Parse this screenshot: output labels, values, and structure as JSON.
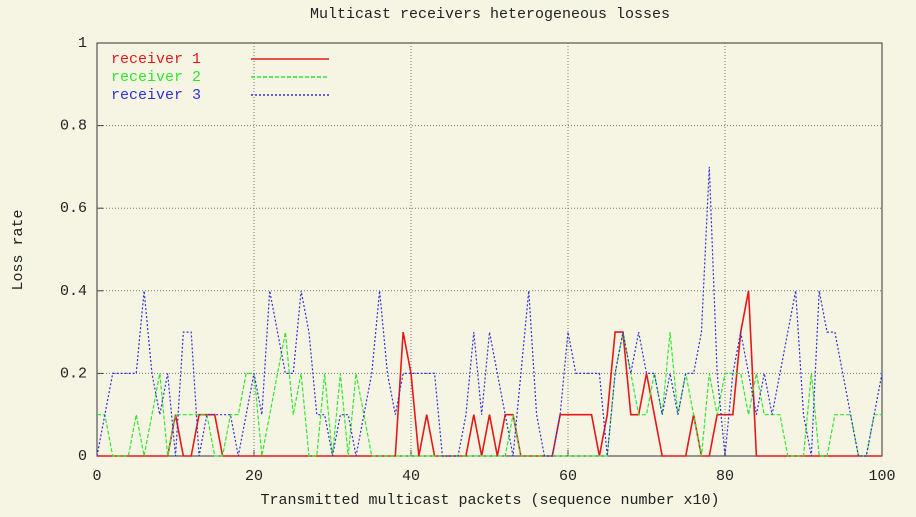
{
  "chart_data": {
    "type": "line",
    "title": "Multicast receivers heterogeneous losses",
    "xlabel": "Transmitted multicast packets (sequence number x10)",
    "ylabel": "Loss rate",
    "xlim": [
      0,
      100
    ],
    "ylim": [
      0,
      1
    ],
    "xticks": [
      0,
      20,
      40,
      60,
      80,
      100
    ],
    "yticks": [
      0,
      0.2,
      0.4,
      0.6,
      0.8,
      1
    ],
    "grid": true,
    "legend": "top-left",
    "x": [
      0,
      1,
      2,
      3,
      4,
      5,
      6,
      7,
      8,
      9,
      10,
      11,
      12,
      13,
      14,
      15,
      16,
      17,
      18,
      19,
      20,
      21,
      22,
      23,
      24,
      25,
      26,
      27,
      28,
      29,
      30,
      31,
      32,
      33,
      34,
      35,
      36,
      37,
      38,
      39,
      40,
      41,
      42,
      43,
      44,
      45,
      46,
      47,
      48,
      49,
      50,
      51,
      52,
      53,
      54,
      55,
      56,
      57,
      58,
      59,
      60,
      61,
      62,
      63,
      64,
      65,
      66,
      67,
      68,
      69,
      70,
      71,
      72,
      73,
      74,
      75,
      76,
      77,
      78,
      79,
      80,
      81,
      82,
      83,
      84,
      85,
      86,
      87,
      88,
      89,
      90,
      91,
      92,
      93,
      94,
      95,
      96,
      97,
      98,
      99,
      100
    ],
    "series": [
      {
        "name": "receiver 1",
        "color": "#e81818",
        "dash": "solid",
        "values": [
          0,
          0,
          0,
          0,
          0,
          0,
          0,
          0,
          0,
          0,
          0.1,
          0,
          0,
          0.1,
          0.1,
          0.1,
          0,
          0,
          0,
          0,
          0,
          0,
          0,
          0,
          0,
          0,
          0,
          0,
          0,
          0,
          0,
          0,
          0,
          0,
          0,
          0,
          0,
          0,
          0,
          0.3,
          0.2,
          0,
          0.1,
          0,
          0,
          0,
          0,
          0,
          0.1,
          0,
          0.1,
          0,
          0.1,
          0.1,
          0,
          0,
          0,
          0,
          0,
          0.1,
          0.1,
          0.1,
          0.1,
          0.1,
          0,
          0.1,
          0.3,
          0.3,
          0.1,
          0.1,
          0.2,
          0.1,
          0,
          0,
          0,
          0,
          0.1,
          0,
          0,
          0.1,
          0.1,
          0.1,
          0.3,
          0.4,
          0,
          0,
          0,
          0,
          0,
          0,
          0,
          0,
          0,
          0,
          0,
          0,
          0,
          0,
          0,
          0,
          0
        ]
      },
      {
        "name": "receiver 2",
        "color": "#2ee82e",
        "dash": "dashed",
        "values": [
          0.1,
          0.1,
          0,
          0,
          0,
          0.1,
          0,
          0.1,
          0.2,
          0,
          0.1,
          0.1,
          0.1,
          0.1,
          0.1,
          0,
          0,
          0.1,
          0.1,
          0.2,
          0.2,
          0,
          0.1,
          0.2,
          0.3,
          0.1,
          0.2,
          0,
          0,
          0.2,
          0,
          0.2,
          0,
          0.2,
          0.1,
          0,
          0,
          0,
          0,
          0,
          0,
          0,
          0,
          0,
          0,
          0,
          0,
          0,
          0,
          0,
          0,
          0,
          0,
          0.1,
          0,
          0,
          0,
          0,
          0,
          0,
          0,
          0,
          0,
          0,
          0,
          0,
          0.2,
          0.3,
          0.2,
          0.1,
          0.1,
          0.2,
          0.1,
          0.3,
          0.1,
          0.2,
          0.1,
          0,
          0.2,
          0.1,
          0.2,
          0.2,
          0.2,
          0.1,
          0.2,
          0.1,
          0.1,
          0.1,
          0,
          0,
          0,
          0.2,
          0,
          0,
          0.1,
          0.1,
          0.1,
          0,
          0,
          0.1,
          0.1
        ]
      },
      {
        "name": "receiver 3",
        "color": "#3030d8",
        "dash": "dotted",
        "values": [
          0,
          0.1,
          0.2,
          0.2,
          0.2,
          0.2,
          0.4,
          0.2,
          0.1,
          0.2,
          0,
          0.3,
          0.3,
          0,
          0.1,
          0.1,
          0.1,
          0.1,
          0,
          0.1,
          0.2,
          0.1,
          0.4,
          0.3,
          0.2,
          0.2,
          0.4,
          0.3,
          0.1,
          0.1,
          0,
          0.1,
          0.1,
          0,
          0.1,
          0.2,
          0.4,
          0.2,
          0.1,
          0.2,
          0.2,
          0.2,
          0.2,
          0.2,
          0,
          0,
          0,
          0.1,
          0.3,
          0.1,
          0.3,
          0.2,
          0.1,
          0,
          0.2,
          0.4,
          0.1,
          0,
          0,
          0.1,
          0.3,
          0.2,
          0.2,
          0.2,
          0.2,
          0,
          0.2,
          0.3,
          0.2,
          0.3,
          0.2,
          0.2,
          0.1,
          0.2,
          0.1,
          0.2,
          0.2,
          0.3,
          0.7,
          0.2,
          0,
          0.2,
          0.3,
          0.2,
          0.1,
          0.2,
          0.1,
          0.2,
          0.3,
          0.4,
          0.1,
          0,
          0.4,
          0.3,
          0.3,
          0.2,
          0.1,
          0,
          0,
          0.1,
          0.2
        ]
      }
    ]
  }
}
